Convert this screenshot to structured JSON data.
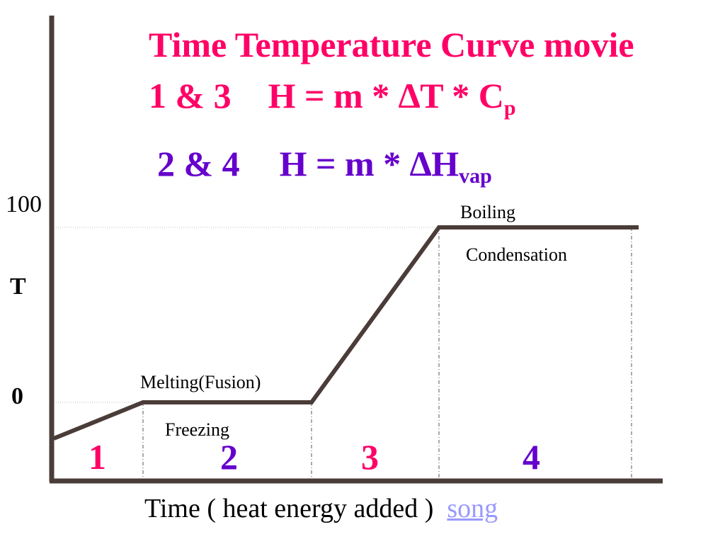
{
  "title": {
    "line1": "Time Temperature Curve movie",
    "line2_prefix": "1 & 3",
    "line2_formula_main": "H = m * ∆T * C",
    "line2_formula_sub": "p",
    "line3_prefix": "2 & 4",
    "line3_formula_main": "H =  m * ∆H",
    "line3_formula_sub": "vap"
  },
  "axis": {
    "y_top_label": "100",
    "y_mid_label": "T",
    "y_zero_label": "0",
    "x_label": "Time ( heat energy added )",
    "x_link": "song"
  },
  "phases": {
    "boiling": "Boiling",
    "condensation": "Condensation",
    "melting": "Melting(Fusion)",
    "freezing": "Freezing"
  },
  "regions": [
    {
      "label": "1",
      "color": "#ff0066"
    },
    {
      "label": "2",
      "color": "#6600cc"
    },
    {
      "label": "3",
      "color": "#ff0066"
    },
    {
      "label": "4",
      "color": "#6600cc"
    }
  ],
  "colors": {
    "curve": "#4a3c38",
    "axis": "#4a3c38",
    "title_pink": "#ff0066",
    "title_purple": "#6600cc",
    "link": "#9999ff"
  }
}
